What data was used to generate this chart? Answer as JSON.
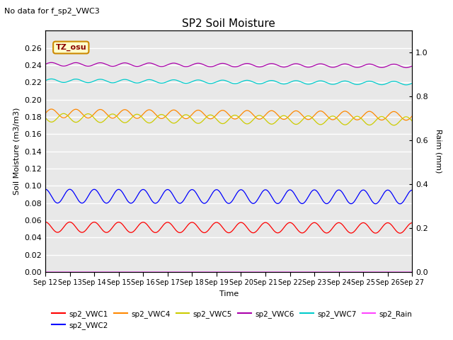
{
  "title": "SP2 Soil Moisture",
  "no_data_text": "No data for f_sp2_VWC3",
  "tz_label": "TZ_osu",
  "xlabel": "Time",
  "ylabel_left": "Soil Moisture (m3/m3)",
  "ylabel_right": "Raim (mm)",
  "ylim_left": [
    0.0,
    0.28
  ],
  "ylim_right": [
    0.0,
    1.1
  ],
  "x_tick_labels": [
    "Sep 12",
    "Sep 13",
    "Sep 14",
    "Sep 15",
    "Sep 16",
    "Sep 17",
    "Sep 18",
    "Sep 19",
    "Sep 20",
    "Sep 21",
    "Sep 22",
    "Sep 23",
    "Sep 24",
    "Sep 25",
    "Sep 26",
    "Sep 27"
  ],
  "series_order": [
    "sp2_VWC1",
    "sp2_VWC2",
    "sp2_VWC4",
    "sp2_VWC5",
    "sp2_VWC6",
    "sp2_VWC7",
    "sp2_Rain"
  ],
  "series": {
    "sp2_VWC1": {
      "color": "#ff0000",
      "base": 0.052,
      "amp": 0.006,
      "period": 1.0,
      "phase": 0.25,
      "drift": -0.001
    },
    "sp2_VWC2": {
      "color": "#0000ff",
      "base": 0.088,
      "amp": 0.008,
      "period": 1.0,
      "phase": 0.25,
      "drift": -0.001
    },
    "sp2_VWC4": {
      "color": "#ff8800",
      "base": 0.184,
      "amp": 0.005,
      "period": 1.0,
      "phase": 0.0,
      "drift": -0.003
    },
    "sp2_VWC5": {
      "color": "#cccc00",
      "base": 0.179,
      "amp": 0.005,
      "period": 1.0,
      "phase": 0.5,
      "drift": -0.004
    },
    "sp2_VWC6": {
      "color": "#aa00aa",
      "base": 0.241,
      "amp": 0.002,
      "period": 1.0,
      "phase": 0.0,
      "drift": -0.002
    },
    "sp2_VWC7": {
      "color": "#00cccc",
      "base": 0.222,
      "amp": 0.002,
      "period": 1.0,
      "phase": 0.0,
      "drift": -0.003
    },
    "sp2_Rain": {
      "color": "#ff44ff",
      "base": 0.0,
      "amp": 0.0,
      "period": 1.0,
      "phase": 0.0,
      "drift": 0.0
    }
  },
  "bg_color": "#ffffff",
  "plot_bg_color": "#e8e8e8",
  "grid_color": "#ffffff",
  "right_yticks": [
    0.0,
    0.2,
    0.4,
    0.6,
    0.8,
    1.0
  ],
  "left_yticks": [
    0.0,
    0.02,
    0.04,
    0.06,
    0.08,
    0.1,
    0.12,
    0.14,
    0.16,
    0.18,
    0.2,
    0.22,
    0.24,
    0.26
  ],
  "n_days": 15,
  "n_points": 1500
}
